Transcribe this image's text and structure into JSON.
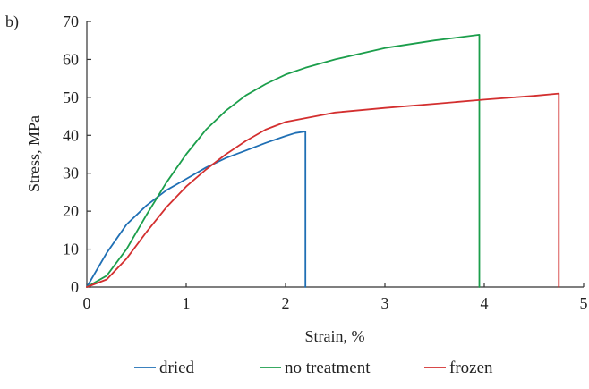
{
  "panel_label": "b)",
  "chart_data": {
    "type": "line",
    "xlabel": "Strain, %",
    "ylabel": "Stress, MPa",
    "xlim": [
      0,
      5
    ],
    "ylim": [
      0,
      70
    ],
    "xticks": [
      0,
      1,
      2,
      3,
      4,
      5
    ],
    "yticks": [
      0,
      10,
      20,
      30,
      40,
      50,
      60,
      70
    ],
    "grid": false,
    "legend_position": "bottom",
    "series": [
      {
        "name": "dried",
        "color": "#1f6fb4",
        "x": [
          0,
          0.2,
          0.4,
          0.6,
          0.8,
          1.0,
          1.2,
          1.4,
          1.6,
          1.8,
          2.0,
          2.1,
          2.2,
          2.2
        ],
        "y": [
          0,
          9,
          16.5,
          21.5,
          25.5,
          28.5,
          31.5,
          34,
          36,
          38,
          39.8,
          40.6,
          41,
          0
        ]
      },
      {
        "name": "no treatment",
        "color": "#1b9e4b",
        "x": [
          0,
          0.2,
          0.4,
          0.6,
          0.8,
          1.0,
          1.2,
          1.4,
          1.6,
          1.8,
          2.0,
          2.2,
          2.5,
          3.0,
          3.5,
          3.95,
          3.95
        ],
        "y": [
          0,
          3,
          10,
          19,
          27.5,
          35,
          41.5,
          46.5,
          50.5,
          53.5,
          56,
          57.8,
          60,
          63,
          65,
          66.5,
          0
        ]
      },
      {
        "name": "frozen",
        "color": "#d32f2f",
        "x": [
          0,
          0.2,
          0.4,
          0.6,
          0.8,
          1.0,
          1.2,
          1.4,
          1.6,
          1.8,
          2.0,
          2.5,
          3.0,
          3.5,
          4.0,
          4.5,
          4.75,
          4.75
        ],
        "y": [
          0,
          2,
          7.5,
          14.5,
          21,
          26.5,
          31,
          35,
          38.5,
          41.5,
          43.5,
          46,
          47.2,
          48.3,
          49.4,
          50.4,
          51,
          0
        ]
      }
    ]
  }
}
